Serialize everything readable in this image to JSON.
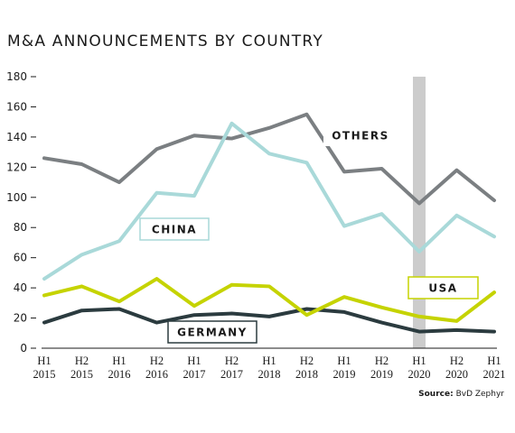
{
  "title": "M&A ANNOUNCEMENTS BY COUNTRY",
  "source_label": "Source:",
  "source_value": "BvD Zephyr",
  "chart_data": {
    "type": "line",
    "title": "M&A ANNOUNCEMENTS BY COUNTRY",
    "xlabel": "",
    "ylabel": "",
    "ylim": [
      0,
      180
    ],
    "yticks": [
      0,
      20,
      40,
      60,
      80,
      100,
      120,
      140,
      160,
      180
    ],
    "grid": false,
    "categories": [
      [
        "H1",
        "2015"
      ],
      [
        "H2",
        "2015"
      ],
      [
        "H1",
        "2016"
      ],
      [
        "H2",
        "2016"
      ],
      [
        "H1",
        "2017"
      ],
      [
        "H2",
        "2017"
      ],
      [
        "H1",
        "2018"
      ],
      [
        "H2",
        "2018"
      ],
      [
        "H1",
        "2019"
      ],
      [
        "H2",
        "2019"
      ],
      [
        "H1",
        "2020"
      ],
      [
        "H2",
        "2020"
      ],
      [
        "H1",
        "2021"
      ]
    ],
    "highlight_band_category_index": 10,
    "highlight_band_color": "#cccccc",
    "series": [
      {
        "name": "OTHERS",
        "color": "#7b7f82",
        "label_box": "none",
        "values": [
          126,
          122,
          110,
          132,
          141,
          139,
          146,
          155,
          117,
          119,
          96,
          118,
          98
        ]
      },
      {
        "name": "CHINA",
        "color": "#a9d9d9",
        "label_box": "bordered",
        "values": [
          46,
          62,
          71,
          103,
          101,
          149,
          129,
          123,
          81,
          89,
          64,
          88,
          74
        ]
      },
      {
        "name": "USA",
        "color": "#c5d300",
        "label_box": "bordered",
        "values": [
          35,
          41,
          31,
          46,
          28,
          42,
          41,
          22,
          34,
          27,
          21,
          18,
          37
        ]
      },
      {
        "name": "GERMANY",
        "color": "#2b3b3f",
        "label_box": "bordered",
        "values": [
          17,
          25,
          26,
          17,
          22,
          23,
          21,
          26,
          24,
          17,
          11,
          12,
          11
        ]
      }
    ]
  }
}
